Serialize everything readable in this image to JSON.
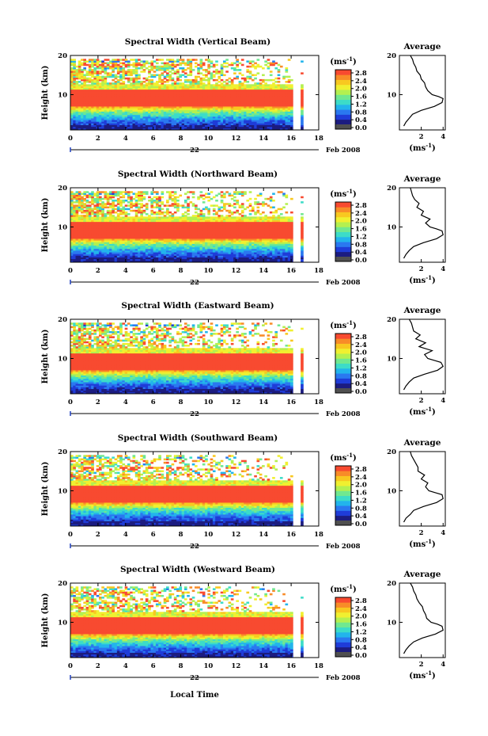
{
  "colors": {
    "scale": [
      "#1c1c80",
      "#1f3cd8",
      "#2a78f0",
      "#22b4ec",
      "#3cdcc8",
      "#70e890",
      "#b4f050",
      "#f0f030",
      "#f8c820",
      "#f88c28",
      "#f84a30"
    ],
    "no_data": "#ffffff"
  },
  "colorbar": {
    "unit": "(ms",
    "unit_exp": "-1",
    "unit_close": ")",
    "ticks": [
      "2.8",
      "2.4",
      "2.0",
      "1.6",
      "1.2",
      "0.8",
      "0.4",
      "0.0"
    ]
  },
  "x_axis": {
    "ticks": [
      "0",
      "2",
      "4",
      "6",
      "8",
      "10",
      "12",
      "14",
      "16",
      "18"
    ],
    "day": "22",
    "date": "Feb 2008",
    "label": "Local Time"
  },
  "y_axis": {
    "label": "Height (km)",
    "ticks": [
      "20",
      "10"
    ]
  },
  "avg": {
    "title": "Average",
    "xticks": [
      "2",
      "4"
    ],
    "xlabel": "(ms",
    "xlabel_exp": "-1",
    "xlabel_close": ")",
    "yticks": [
      "20",
      "10"
    ]
  },
  "chart_data": [
    {
      "type": "heatmap",
      "title": "Spectral Width (Vertical Beam)",
      "x_range": [
        0,
        18
      ],
      "y_range": [
        1,
        20
      ],
      "z_range": [
        0.0,
        3.0
      ],
      "xlabel": "",
      "ylabel": "Height (km)",
      "gaps": [
        [
          16.2,
          16.6
        ]
      ],
      "data_end": 16.9,
      "average_profile": {
        "height": [
          2,
          3,
          4,
          5,
          6,
          7,
          8,
          9,
          9.5,
          10,
          11,
          12,
          13,
          14,
          15,
          16,
          17,
          18,
          19,
          20
        ],
        "value": [
          0.4,
          0.6,
          0.9,
          1.2,
          2.0,
          3.2,
          3.9,
          4.0,
          3.6,
          3.0,
          2.6,
          2.4,
          2.3,
          2.0,
          1.9,
          1.6,
          1.5,
          1.3,
          1.2,
          1.0
        ]
      }
    },
    {
      "type": "heatmap",
      "title": "Spectral Width (Northward Beam)",
      "x_range": [
        0,
        18
      ],
      "y_range": [
        1,
        20
      ],
      "z_range": [
        0.0,
        3.0
      ],
      "xlabel": "",
      "ylabel": "Height (km)",
      "gaps": [
        [
          16.2,
          16.6
        ]
      ],
      "data_end": 16.9,
      "average_profile": {
        "height": [
          2,
          3,
          4,
          5,
          6,
          7,
          8,
          9,
          9.5,
          10,
          11,
          12,
          13,
          14,
          15,
          16,
          17,
          18,
          19,
          20
        ],
        "value": [
          0.4,
          0.6,
          0.9,
          1.3,
          2.2,
          3.4,
          4.0,
          3.9,
          3.4,
          2.8,
          2.4,
          2.8,
          2.0,
          2.2,
          1.6,
          1.8,
          1.4,
          1.2,
          1.1,
          1.0
        ]
      }
    },
    {
      "type": "heatmap",
      "title": "Spectral Width (Eastward Beam)",
      "x_range": [
        0,
        18
      ],
      "y_range": [
        1,
        20
      ],
      "z_range": [
        0.0,
        3.0
      ],
      "xlabel": "",
      "ylabel": "Height (km)",
      "gaps": [
        [
          16.2,
          16.6
        ]
      ],
      "data_end": 16.9,
      "average_profile": {
        "height": [
          2,
          3,
          4,
          5,
          6,
          7,
          8,
          9,
          9.5,
          10,
          11,
          12,
          13,
          14,
          15,
          16,
          17,
          18,
          19,
          20
        ],
        "value": [
          0.4,
          0.6,
          0.9,
          1.3,
          2.3,
          3.5,
          4.0,
          3.8,
          3.2,
          2.6,
          2.3,
          3.0,
          1.8,
          2.4,
          1.5,
          1.9,
          1.3,
          1.2,
          1.1,
          0.9
        ]
      }
    },
    {
      "type": "heatmap",
      "title": "Spectral Width (Southward Beam)",
      "x_range": [
        0,
        18
      ],
      "y_range": [
        1,
        20
      ],
      "z_range": [
        0.0,
        3.0
      ],
      "xlabel": "",
      "ylabel": "Height (km)",
      "gaps": [
        [
          16.2,
          16.6
        ]
      ],
      "data_end": 16.9,
      "average_profile": {
        "height": [
          2,
          3,
          4,
          5,
          6,
          7,
          8,
          9,
          9.5,
          10,
          11,
          12,
          13,
          14,
          15,
          16,
          17,
          18,
          19,
          20
        ],
        "value": [
          0.4,
          0.6,
          1.0,
          1.3,
          2.2,
          3.4,
          4.0,
          3.9,
          3.3,
          2.7,
          2.4,
          2.6,
          2.0,
          2.3,
          1.7,
          1.7,
          1.5,
          1.3,
          1.1,
          1.0
        ]
      }
    },
    {
      "type": "heatmap",
      "title": "Spectral Width (Westward Beam)",
      "x_range": [
        0,
        18
      ],
      "y_range": [
        1,
        20
      ],
      "z_range": [
        0.0,
        3.0
      ],
      "xlabel": "",
      "ylabel": "Height (km)",
      "gaps": [
        [
          16.2,
          16.6
        ]
      ],
      "data_end": 16.9,
      "average_profile": {
        "height": [
          2,
          3,
          4,
          5,
          6,
          7,
          8,
          9,
          9.5,
          10,
          11,
          12,
          13,
          14,
          15,
          16,
          17,
          18,
          19,
          20
        ],
        "value": [
          0.4,
          0.6,
          0.9,
          1.3,
          2.1,
          3.3,
          4.0,
          3.9,
          3.5,
          2.9,
          2.5,
          2.4,
          2.2,
          2.1,
          1.8,
          1.6,
          1.5,
          1.3,
          1.2,
          1.0
        ]
      }
    }
  ]
}
